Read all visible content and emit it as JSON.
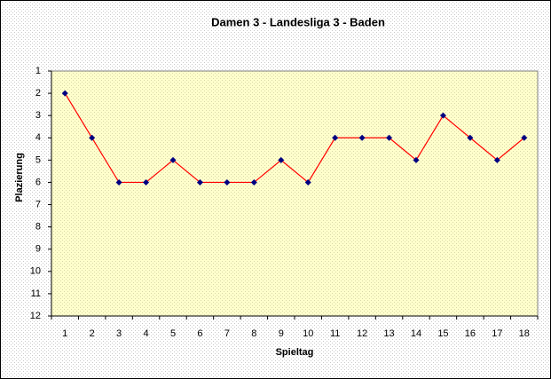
{
  "chart_data": {
    "type": "line",
    "title": "Damen 3 - Landesliga 3 - Baden",
    "x_label": "Spieltag",
    "y_label": "Plazierung",
    "categories": [
      "1",
      "2",
      "3",
      "4",
      "5",
      "6",
      "7",
      "8",
      "9",
      "10",
      "11",
      "12",
      "13",
      "14",
      "15",
      "16",
      "17",
      "18"
    ],
    "values": [
      2,
      4,
      6,
      6,
      5,
      6,
      6,
      6,
      5,
      6,
      4,
      4,
      4,
      5,
      3,
      4,
      5,
      4
    ],
    "color": "#ff0000",
    "marker_color": "#000080",
    "ylim": [
      1,
      12
    ],
    "y_reversed": true,
    "yticks": [
      1,
      2,
      3,
      4,
      5,
      6,
      7,
      8,
      9,
      10,
      11,
      12
    ],
    "grid": false
  }
}
